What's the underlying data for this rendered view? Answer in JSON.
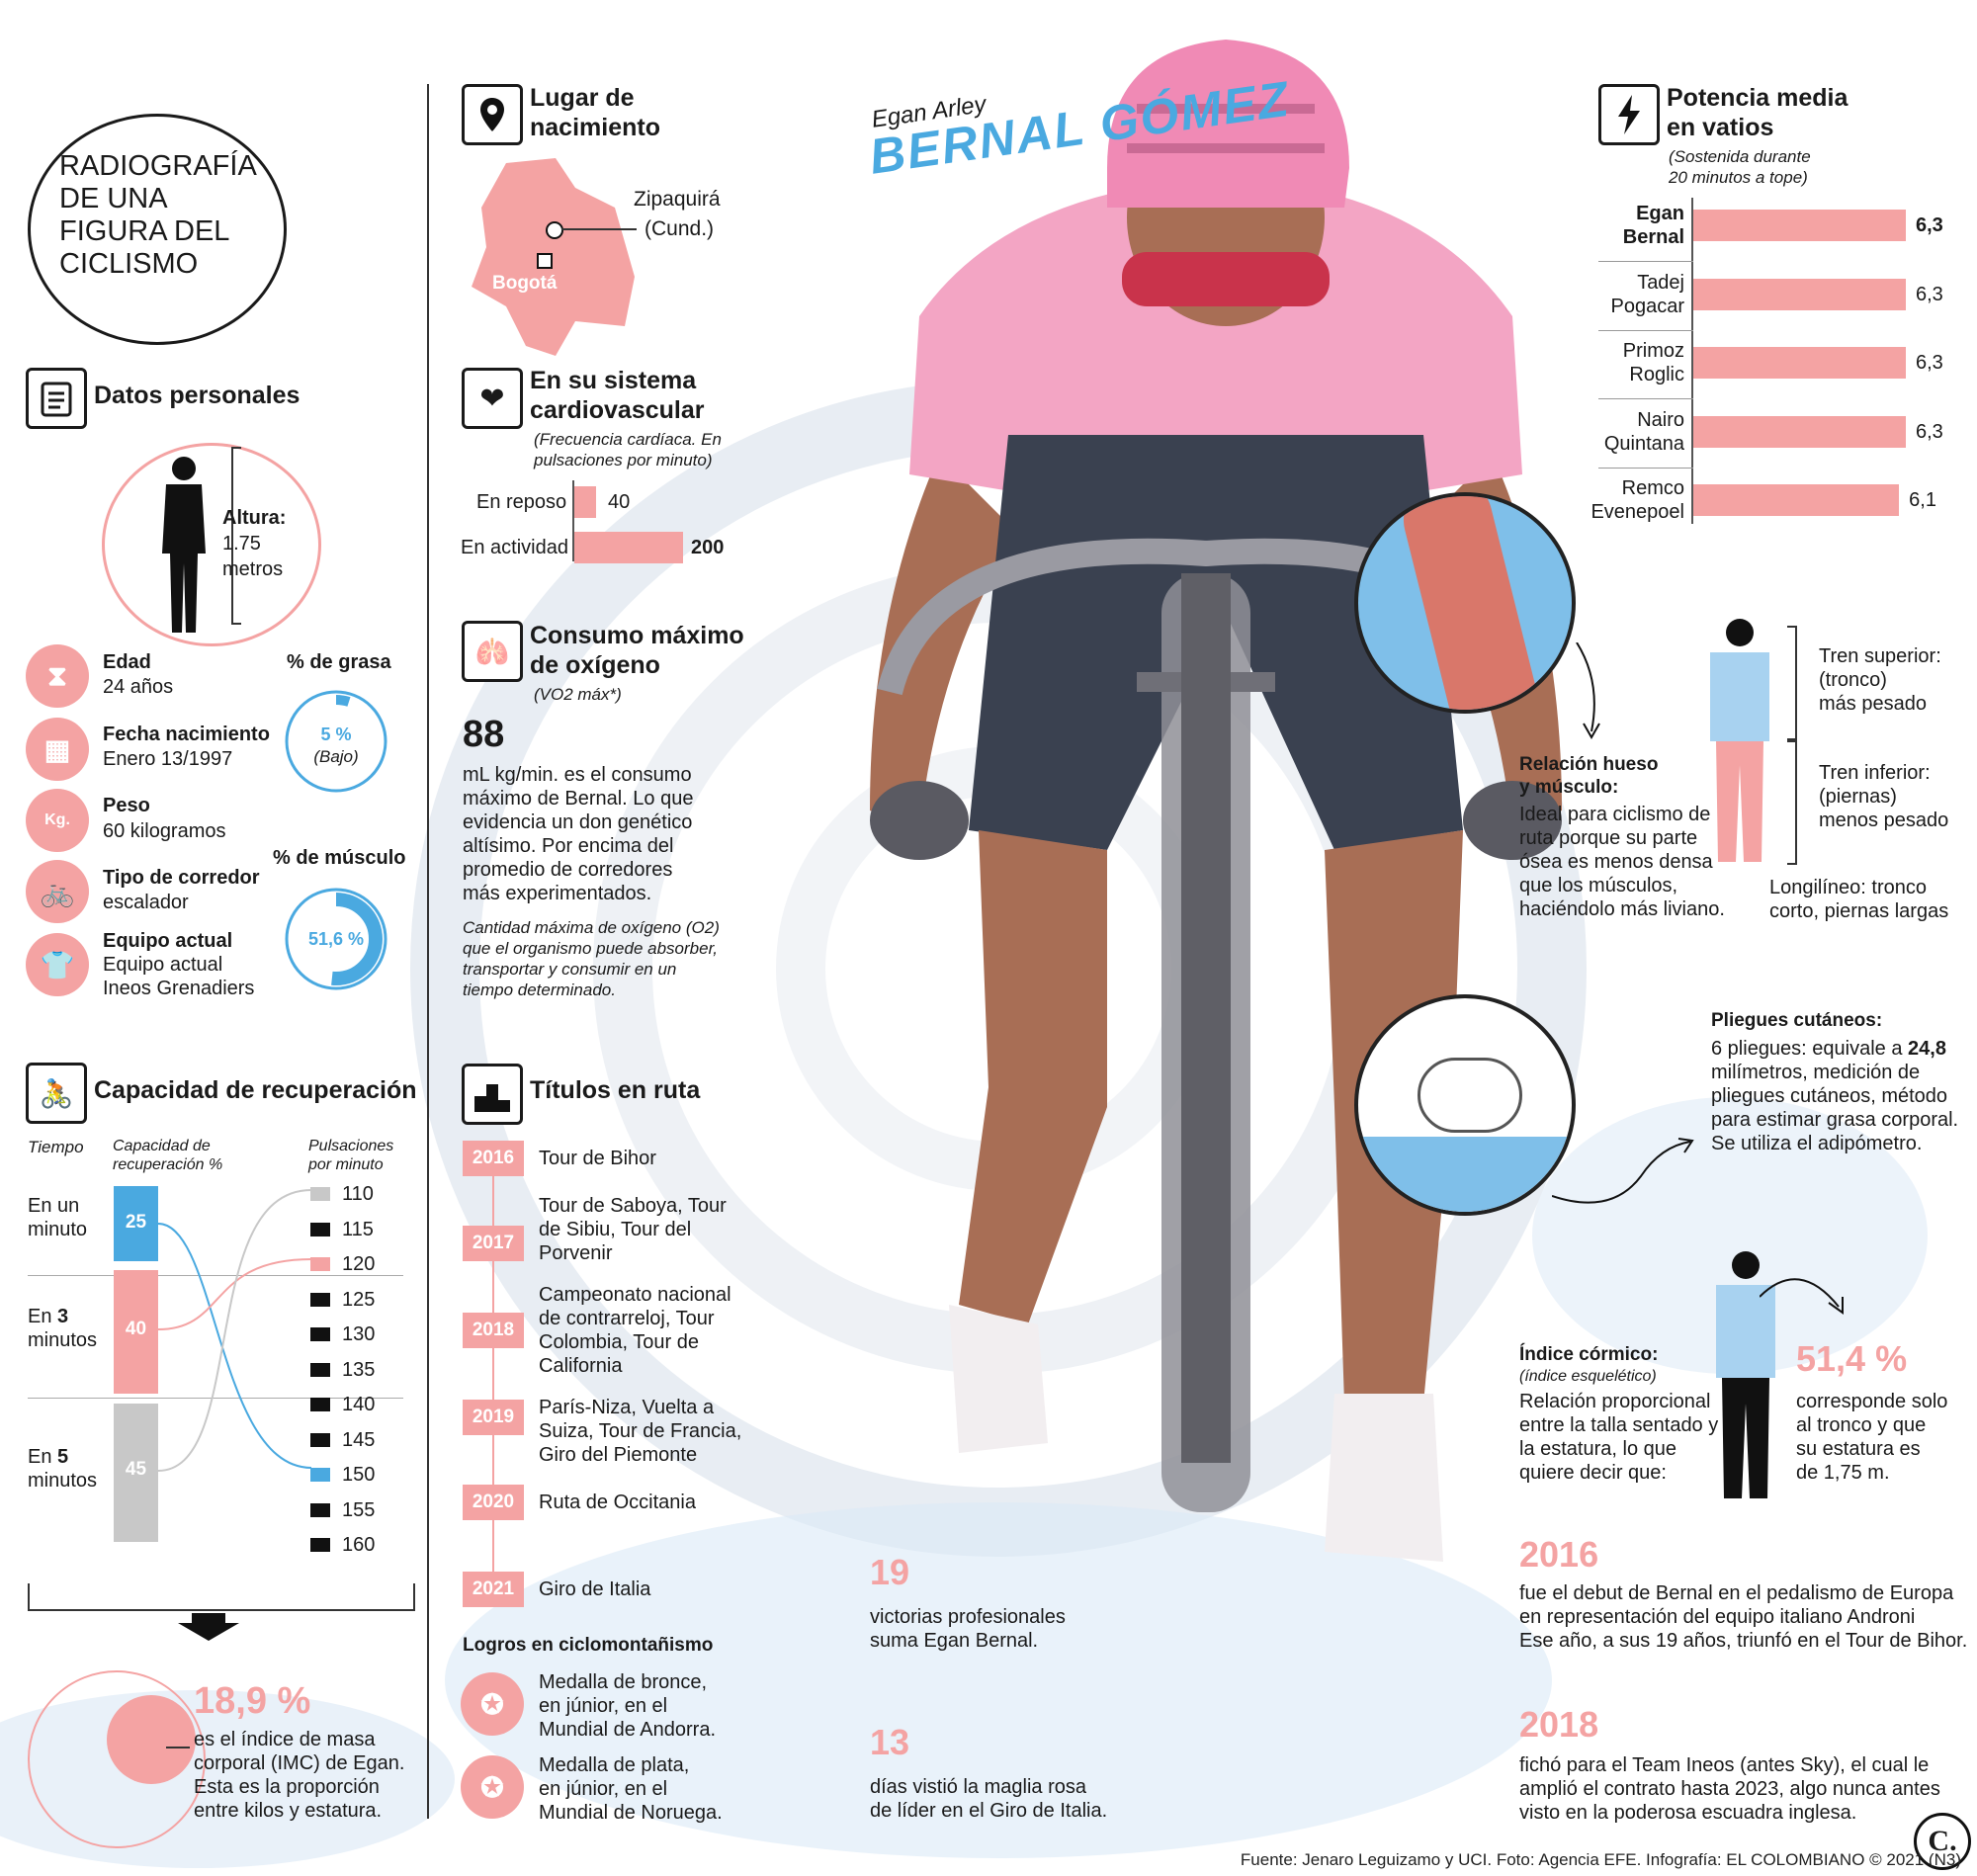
{
  "title": "RADIOGRAFÍA DE UNA FIGURA DEL CICLISMO",
  "name": {
    "first": "Egan Arley",
    "last": "BERNAL GÓMEZ"
  },
  "colors": {
    "accent_pink": "#f4a3a3",
    "accent_blue": "#4aa9e0",
    "accent_grey": "#c8c8c8",
    "dark": "#1a1a1a"
  },
  "personal": {
    "heading": "Datos personales",
    "height_label": "Altura:",
    "height_value": "1.75",
    "height_unit": "metros",
    "items": [
      {
        "icon": "hourglass-icon",
        "label": "Edad",
        "value": "24 años"
      },
      {
        "icon": "calendar-icon",
        "label": "Fecha nacimiento",
        "value": "Enero 13/1997"
      },
      {
        "icon": "weight-icon",
        "label": "Peso",
        "value": "60 kilogramos"
      },
      {
        "icon": "cyclist-icon",
        "label": "Tipo de corredor",
        "value": "escalador"
      },
      {
        "icon": "jersey-icon",
        "label": "Equipo actual",
        "value": "Equipo actual",
        "value2": "Ineos Grenadiers"
      }
    ],
    "fat": {
      "label": "% de grasa",
      "value": "5 %",
      "note": "(Bajo)",
      "fraction": 0.05
    },
    "muscle": {
      "label": "% de músculo",
      "value": "51,6 %",
      "fraction": 0.516
    }
  },
  "recovery": {
    "heading": "Capacidad de recuperación",
    "col_time": "Tiempo",
    "col_capacity": "Capacidad de recuperación %",
    "col_pulse": "Pulsaciones por minuto",
    "rows": [
      {
        "time_pre": "En un",
        "time_post": "minuto",
        "value": "25"
      },
      {
        "time_pre": "En",
        "time_num": "3",
        "time_post": "minutos",
        "value": "40"
      },
      {
        "time_pre": "En",
        "time_num": "5",
        "time_post": "minutos",
        "value": "45"
      }
    ],
    "pulses": [
      "110",
      "115",
      "120",
      "125",
      "130",
      "135",
      "140",
      "145",
      "150",
      "155",
      "160"
    ],
    "imc_value": "18,9 %",
    "imc_text": [
      "es el índice de masa",
      "corporal (IMC) de Egan.",
      "Esta es la proporción",
      "entre kilos y estatura."
    ]
  },
  "birthplace": {
    "heading": [
      "Lugar de",
      "nacimiento"
    ],
    "city": "Zipaquirá",
    "region": "(Cund.)",
    "capital": "Bogotá"
  },
  "cardio": {
    "heading": [
      "En su sistema",
      "cardiovascular"
    ],
    "sub": [
      "(Frecuencia cardíaca. En",
      "pulsaciones por minuto)"
    ],
    "rows": [
      {
        "label": "En reposo",
        "value": "40",
        "raw": 40
      },
      {
        "label": "En actividad",
        "value": "200",
        "raw": 200
      }
    ]
  },
  "oxygen": {
    "heading": [
      "Consumo máximo",
      "de oxígeno"
    ],
    "sub": "(VO2 máx*)",
    "value": "88",
    "text": [
      "mL kg/min. es el consumo",
      "máximo de Bernal. Lo que",
      "evidencia un don genético",
      "altísimo. Por encima del",
      "promedio de corredores",
      "más experimentados."
    ],
    "note": [
      "Cantidad máxima de oxígeno (O2)",
      "que el organismo puede absorber,",
      "transportar y consumir en un",
      "tiempo determinado."
    ]
  },
  "titles": {
    "heading": "Títulos en ruta",
    "items": [
      {
        "year": "2016",
        "lines": [
          "Tour de Bihor"
        ]
      },
      {
        "year": "2017",
        "lines": [
          "Tour de Saboya, Tour",
          "de Sibiu, Tour del",
          "Porvenir"
        ]
      },
      {
        "year": "2018",
        "lines": [
          "Campeonato nacional",
          "de contrarreloj, Tour",
          "Colombia, Tour de",
          "California"
        ]
      },
      {
        "year": "2019",
        "lines": [
          "París-Niza, Vuelta a",
          "Suiza, Tour de Francia,",
          "Giro del Piemonte"
        ]
      },
      {
        "year": "2020",
        "lines": [
          "Ruta de Occitania"
        ]
      },
      {
        "year": "2021",
        "lines": [
          "Giro de Italia"
        ]
      }
    ],
    "mtb_heading": "Logros en ciclomontañismo",
    "mtb": [
      {
        "lines": [
          "Medalla de bronce,",
          "en júnior, en el",
          "Mundial de Andorra."
        ]
      },
      {
        "lines": [
          "Medalla de plata,",
          "en júnior, en el",
          "Mundial de Noruega."
        ]
      }
    ]
  },
  "stats": [
    {
      "value": "19",
      "lines": [
        "victorias profesionales",
        "suma Egan Bernal."
      ]
    },
    {
      "value": "13",
      "lines": [
        "días vistió la maglia rosa",
        "de líder en el Giro de Italia."
      ]
    }
  ],
  "power": {
    "heading": [
      "Potencia media",
      "en vatios"
    ],
    "sub": [
      "(Sostenida durante",
      "20 minutos a tope)"
    ],
    "riders": [
      {
        "name": [
          "Egan",
          "Bernal"
        ],
        "value": "6,3",
        "raw": 6.3,
        "bold": true
      },
      {
        "name": [
          "Tadej",
          "Pogacar"
        ],
        "value": "6,3",
        "raw": 6.3,
        "bold": false
      },
      {
        "name": [
          "Primoz",
          "Roglic"
        ],
        "value": "6,3",
        "raw": 6.3,
        "bold": false
      },
      {
        "name": [
          "Nairo",
          "Quintana"
        ],
        "value": "6,3",
        "raw": 6.3,
        "bold": false
      },
      {
        "name": [
          "Remco",
          "Evenepoel"
        ],
        "value": "6,1",
        "raw": 6.1,
        "bold": false
      }
    ]
  },
  "bone": {
    "heading": [
      "Relación hueso",
      "y músculo:"
    ],
    "lines": [
      "Ideal para ciclismo de",
      "ruta porque su parte",
      "ósea es menos densa",
      "que los músculos,",
      "haciéndolo más liviano."
    ]
  },
  "body": {
    "upper": [
      "Tren superior:",
      "(tronco)",
      "más pesado"
    ],
    "lower": [
      "Tren inferior:",
      "(piernas)",
      "menos pesado"
    ],
    "note": [
      "Longilíneo: tronco",
      "corto, piernas largas"
    ]
  },
  "skin": {
    "heading": "Pliegues cutáneos:",
    "line1_pre": "6 pliegues: equivale a ",
    "line1_bold": "24,8",
    "lines": [
      "milímetros, medición de",
      "pliegues cutáneos, método",
      "para estimar grasa corporal.",
      "Se utiliza el adipómetro."
    ]
  },
  "cormic": {
    "heading": "Índice córmico:",
    "sub": "(índice esquelético)",
    "lines": [
      "Relación proporcional",
      "entre la talla sentado y",
      "la estatura, lo que",
      "quiere decir que:"
    ],
    "value": "51,4 %",
    "value_lines": [
      "corresponde solo",
      "al tronco y que",
      "su estatura es",
      "de 1,75 m."
    ]
  },
  "milestones": [
    {
      "year": "2016",
      "lines": [
        "fue el debut de Bernal en el pedalismo de Europa",
        "en representación del equipo italiano Androni",
        "Ese año, a sus 19 años, triunfó en el Tour de Bihor."
      ]
    },
    {
      "year": "2018",
      "lines": [
        "fichó para el Team Ineos (antes Sky), el cual le",
        "amplió el contrato hasta 2023, algo nunca antes",
        "visto en la poderosa escuadra inglesa."
      ]
    }
  ],
  "logo": "C.",
  "source": "Fuente: Jenaro Leguizamo y UCI. Foto: Agencia EFE. Infografía: EL COLOMBIANO © 2021 (N3)"
}
